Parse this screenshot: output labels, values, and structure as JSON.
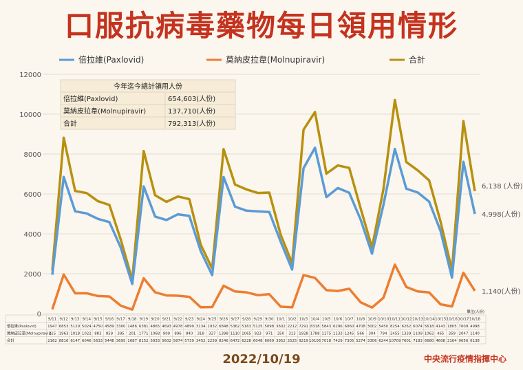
{
  "title": "口服抗病毒藥物每日領用情形",
  "date": "2022/10/19",
  "org": "中央流行疫情指揮中心",
  "unit": "單位(人份)",
  "colors": {
    "paxlovid": "#5b9bd5",
    "molnupiravir": "#ed7d31",
    "total": "#b8900f",
    "title": "#c4331f"
  },
  "summary": {
    "title": "今年迄今總計領用人份",
    "rows": [
      {
        "label": "倍拉維(Paxlovid)",
        "value": "654,603(人份)"
      },
      {
        "label": "莫納皮拉韋(Molnupiravir)",
        "value": "137,710(人份)"
      },
      {
        "label": "合計",
        "value": "792,313(人份)"
      }
    ]
  },
  "end_labels": {
    "total": "6,138 (人份)",
    "paxlovid": "4,998(人份)",
    "molnupiravir": "1,140(人份)"
  },
  "table_row_labels": [
    "倍拉維(Paxlovid)",
    "莫納皮拉韋(Molnupiravir)",
    "合計"
  ],
  "chart_data": {
    "type": "line",
    "x": [
      "9/11",
      "9/12",
      "9/13",
      "9/14",
      "9/15",
      "9/16",
      "9/17",
      "9/18",
      "9/19",
      "9/20",
      "9/21",
      "9/22",
      "9/23",
      "9/24",
      "9/25",
      "9/26",
      "9/27",
      "9/28",
      "9/29",
      "9/30",
      "10/1",
      "10/2",
      "10/3",
      "10/4",
      "10/5",
      "10/6",
      "10/7",
      "10/8",
      "10/9",
      "10/10",
      "10/11",
      "10/12",
      "10/13",
      "10/14",
      "10/15",
      "10/16",
      "10/17",
      "10/18"
    ],
    "ylim": [
      0,
      12000
    ],
    "yticks": [
      0,
      2000,
      4000,
      6000,
      8000,
      10000,
      12000
    ],
    "grid": true,
    "legend": "top",
    "series": [
      {
        "name": "倍拉維(Paxlovid)",
        "values": [
          1947,
          6853,
          5129,
          5024,
          4750,
          4589,
          3300,
          1486,
          6381,
          4865,
          4693,
          4978,
          4899,
          3134,
          1932,
          6848,
          5362,
          5163,
          5125,
          5098,
          3602,
          2212,
          7291,
          8318,
          5843,
          6296,
          6060,
          4708,
          3002,
          5450,
          8254,
          6262,
          6074,
          5618,
          4143,
          1805,
          7609,
          4998
        ]
      },
      {
        "name": "莫納皮拉韋(Molnupiravir)",
        "values": [
          215,
          1963,
          1018,
          1022,
          883,
          859,
          395,
          201,
          1771,
          1068,
          909,
          896,
          840,
          318,
          327,
          1398,
          1110,
          1065,
          923,
          971,
          350,
          313,
          1928,
          1788,
          1175,
          1133,
          1245,
          566,
          304,
          794,
          2455,
          1339,
          1109,
          1062,
          465,
          359,
          2047,
          1140
        ]
      },
      {
        "name": "合計",
        "values": [
          2162,
          8816,
          6147,
          6046,
          5633,
          5448,
          3695,
          1687,
          8152,
          5933,
          5602,
          5874,
          5739,
          3452,
          2259,
          8246,
          6472,
          6228,
          6048,
          6069,
          3952,
          2525,
          9219,
          10106,
          7018,
          7429,
          7305,
          5274,
          3306,
          6244,
          10709,
          7601,
          7183,
          6680,
          4608,
          2164,
          9656,
          6138
        ]
      }
    ]
  }
}
